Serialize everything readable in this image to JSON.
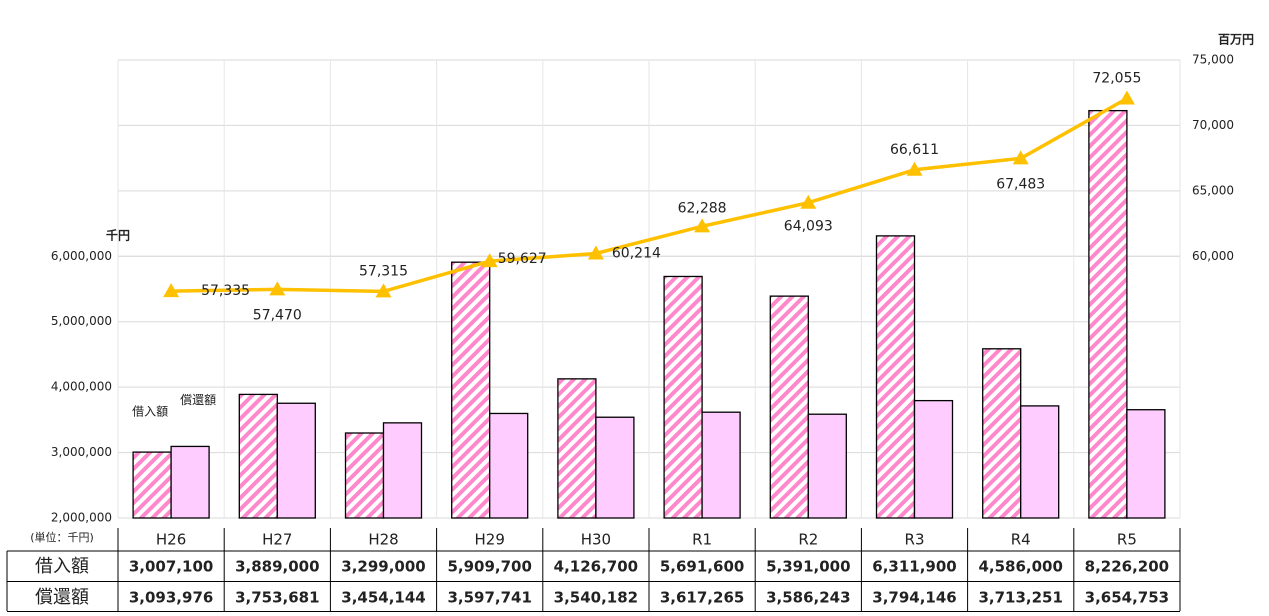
{
  "chart_data": {
    "type": "bar",
    "y_unit": "千円",
    "y2_unit": "百万円",
    "table_note": "(単位：千円)",
    "categories": [
      "H26",
      "H27",
      "H28",
      "H29",
      "H30",
      "R1",
      "R2",
      "R3",
      "R4",
      "R5"
    ],
    "ylim": [
      2000000,
      9000000
    ],
    "yticks": [
      {
        "value": 2000000,
        "label": "2,000,000"
      },
      {
        "value": 3000000,
        "label": "3,000,000"
      },
      {
        "value": 4000000,
        "label": "4,000,000"
      },
      {
        "value": 5000000,
        "label": "5,000,000"
      },
      {
        "value": 6000000,
        "label": "6,000,000"
      }
    ],
    "y2lim": [
      40000,
      75000
    ],
    "y2ticks": [
      {
        "value": 60000,
        "label": "60,000"
      },
      {
        "value": 65000,
        "label": "65,000"
      },
      {
        "value": 70000,
        "label": "70,000"
      },
      {
        "value": 75000,
        "label": "75,000"
      }
    ],
    "grid": true,
    "series": [
      {
        "name": "借入額",
        "color": "#ff88cc",
        "hatch": true,
        "values": [
          3007100,
          3889000,
          3299000,
          5909700,
          4126700,
          5691600,
          5391000,
          6311900,
          4586000,
          8226200
        ],
        "value_labels": [
          "3,007,100",
          "3,889,000",
          "3,299,000",
          "5,909,700",
          "4,126,700",
          "5,691,600",
          "5,391,000",
          "6,311,900",
          "4,586,000",
          "8,226,200"
        ]
      },
      {
        "name": "償還額",
        "color": "#ffccff",
        "hatch": false,
        "values": [
          3093976,
          3753681,
          3454144,
          3597741,
          3540182,
          3617265,
          3586243,
          3794146,
          3713251,
          3654753
        ],
        "value_labels": [
          "3,093,976",
          "3,753,681",
          "3,454,144",
          "3,597,741",
          "3,540,182",
          "3,617,265",
          "3,586,243",
          "3,794,146",
          "3,713,251",
          "3,654,753"
        ]
      },
      {
        "type": "line",
        "axis": "y2",
        "color": "#ffc000",
        "values": [
          57335,
          57470,
          57315,
          59627,
          60214,
          62288,
          64093,
          66611,
          67483,
          72055
        ],
        "value_labels": [
          "57,335",
          "57,470",
          "57,315",
          "59,627",
          "60,214",
          "62,288",
          "64,093",
          "66,611",
          "67,483",
          "72,055"
        ]
      }
    ]
  }
}
